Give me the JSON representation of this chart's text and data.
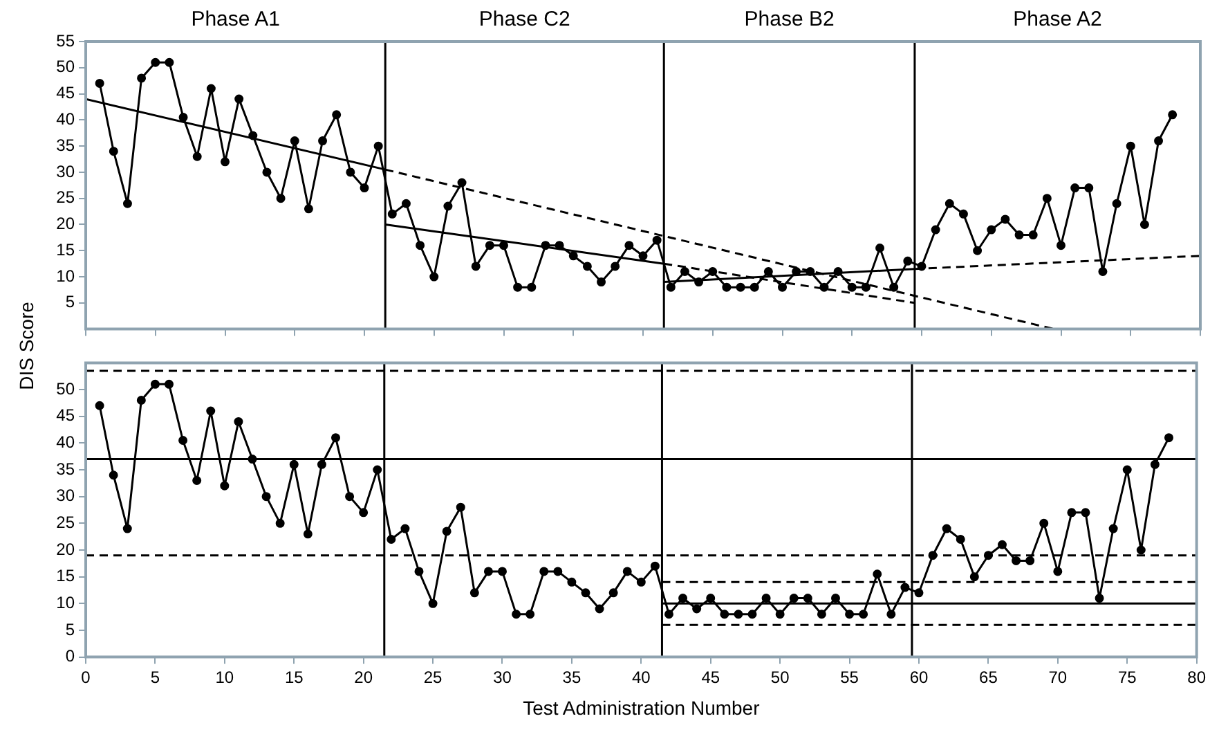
{
  "chart_data": [
    {
      "type": "line",
      "ylabel": "DIS Score",
      "annotations": [
        "Phase A1",
        "Phase C2",
        "Phase B2",
        "Phase A2"
      ],
      "xlim": [
        0,
        80
      ],
      "xticks": [
        0,
        5,
        10,
        15,
        20,
        25,
        30,
        35,
        40,
        45,
        50,
        55,
        60,
        65,
        70,
        75,
        80
      ],
      "ylim": [
        0,
        55
      ],
      "yticks": [
        5,
        10,
        15,
        20,
        25,
        30,
        35,
        40,
        45,
        50,
        55
      ],
      "tick_labels": "y",
      "legend": false,
      "grid": false,
      "ref_lines": [
        {
          "axis": "x",
          "value": 21.5,
          "color": "#000000"
        },
        {
          "axis": "x",
          "value": 41.5,
          "color": "#000000"
        },
        {
          "axis": "x",
          "value": 59.5,
          "color": "#000000"
        }
      ],
      "series": [
        {
          "color": "#000000",
          "marker": "circle",
          "line_style": "solid",
          "x": [
            1,
            2,
            3,
            4,
            5,
            6,
            7,
            8,
            9,
            10,
            11,
            12,
            13,
            14,
            15,
            16,
            17,
            18,
            19,
            20,
            21,
            22,
            23,
            24,
            25,
            26,
            27,
            28,
            29,
            30,
            31,
            32,
            33,
            34,
            35,
            36,
            37,
            38,
            39,
            40,
            41,
            42,
            43,
            44,
            45,
            46,
            47,
            48,
            49,
            50,
            51,
            52,
            53,
            54,
            55,
            56,
            57,
            58,
            59,
            60,
            61,
            62,
            63,
            64,
            65,
            66,
            67,
            68,
            69,
            70,
            71,
            72,
            73,
            74,
            75,
            76,
            77,
            78
          ],
          "values": [
            47,
            34,
            24,
            48,
            51,
            51,
            40.5,
            33,
            46,
            32,
            44,
            37,
            30,
            25,
            36,
            23,
            36,
            41,
            30,
            27,
            35,
            22,
            24,
            16,
            10,
            23.5,
            28,
            12,
            16,
            16,
            8,
            8,
            16,
            16,
            14,
            12,
            9,
            12,
            16,
            14,
            17,
            8,
            11,
            9,
            11,
            8,
            8,
            8,
            11,
            8,
            11,
            11,
            8,
            11,
            8,
            8,
            15.5,
            8,
            13,
            12,
            19,
            24,
            22,
            15,
            19,
            21,
            18,
            18,
            25,
            16,
            27,
            27,
            11,
            24,
            35,
            20,
            36,
            41
          ]
        },
        {
          "color": "#000000",
          "marker": "none",
          "line_style": "solid",
          "x": [
            0,
            21.5
          ],
          "values": [
            44,
            30.5
          ]
        },
        {
          "color": "#000000",
          "marker": "none",
          "line_style": "dashed",
          "x": [
            21.5,
            69.5
          ],
          "values": [
            30.5,
            0
          ]
        },
        {
          "color": "#000000",
          "marker": "none",
          "line_style": "solid",
          "x": [
            21.5,
            41.5
          ],
          "values": [
            20,
            12.5
          ]
        },
        {
          "color": "#000000",
          "marker": "none",
          "line_style": "dashed",
          "x": [
            41.5,
            59.5
          ],
          "values": [
            12.5,
            5
          ]
        },
        {
          "color": "#000000",
          "marker": "none",
          "line_style": "solid",
          "x": [
            41.5,
            59.5
          ],
          "values": [
            9,
            11.5
          ]
        },
        {
          "color": "#000000",
          "marker": "none",
          "line_style": "dashed",
          "x": [
            59.5,
            80
          ],
          "values": [
            11.5,
            14
          ]
        }
      ]
    },
    {
      "type": "line",
      "xlabel": "Test Administration Number",
      "xlim": [
        0,
        80
      ],
      "xticks": [
        0,
        5,
        10,
        15,
        20,
        25,
        30,
        35,
        40,
        45,
        50,
        55,
        60,
        65,
        70,
        75,
        80
      ],
      "ylim": [
        0,
        55
      ],
      "yticks": [
        0,
        5,
        10,
        15,
        20,
        25,
        30,
        35,
        40,
        45,
        50
      ],
      "legend": false,
      "grid": false,
      "ref_lines": [
        {
          "axis": "x",
          "value": 21.5,
          "color": "#000000"
        },
        {
          "axis": "x",
          "value": 41.5,
          "color": "#000000"
        },
        {
          "axis": "x",
          "value": 59.5,
          "color": "#000000"
        }
      ],
      "series": [
        {
          "color": "#000000",
          "marker": "circle",
          "line_style": "solid",
          "x": [
            1,
            2,
            3,
            4,
            5,
            6,
            7,
            8,
            9,
            10,
            11,
            12,
            13,
            14,
            15,
            16,
            17,
            18,
            19,
            20,
            21,
            22,
            23,
            24,
            25,
            26,
            27,
            28,
            29,
            30,
            31,
            32,
            33,
            34,
            35,
            36,
            37,
            38,
            39,
            40,
            41,
            42,
            43,
            44,
            45,
            46,
            47,
            48,
            49,
            50,
            51,
            52,
            53,
            54,
            55,
            56,
            57,
            58,
            59,
            60,
            61,
            62,
            63,
            64,
            65,
            66,
            67,
            68,
            69,
            70,
            71,
            72,
            73,
            74,
            75,
            76,
            77,
            78
          ],
          "values": [
            47,
            34,
            24,
            48,
            51,
            51,
            40.5,
            33,
            46,
            32,
            44,
            37,
            30,
            25,
            36,
            23,
            36,
            41,
            30,
            27,
            35,
            22,
            24,
            16,
            10,
            23.5,
            28,
            12,
            16,
            16,
            8,
            8,
            16,
            16,
            14,
            12,
            9,
            12,
            16,
            14,
            17,
            8,
            11,
            9,
            11,
            8,
            8,
            8,
            11,
            8,
            11,
            11,
            8,
            11,
            8,
            8,
            15.5,
            8,
            13,
            12,
            19,
            24,
            22,
            15,
            19,
            21,
            18,
            18,
            25,
            16,
            27,
            27,
            11,
            24,
            35,
            20,
            36,
            41
          ]
        },
        {
          "color": "#000000",
          "marker": "none",
          "line_style": "solid",
          "x": [
            0,
            80
          ],
          "values": [
            37,
            37
          ]
        },
        {
          "color": "#000000",
          "marker": "none",
          "line_style": "dashed",
          "x": [
            0,
            80
          ],
          "values": [
            53.5,
            53.5
          ]
        },
        {
          "color": "#000000",
          "marker": "none",
          "line_style": "dashed",
          "x": [
            0,
            80
          ],
          "values": [
            19,
            19
          ]
        },
        {
          "color": "#000000",
          "marker": "none",
          "line_style": "solid",
          "x": [
            41.5,
            80
          ],
          "values": [
            10,
            10
          ]
        },
        {
          "color": "#000000",
          "marker": "none",
          "line_style": "dashed",
          "x": [
            41.5,
            80
          ],
          "values": [
            14,
            14
          ]
        },
        {
          "color": "#000000",
          "marker": "none",
          "line_style": "dashed",
          "x": [
            41.5,
            80
          ],
          "values": [
            6,
            6
          ]
        }
      ]
    }
  ]
}
